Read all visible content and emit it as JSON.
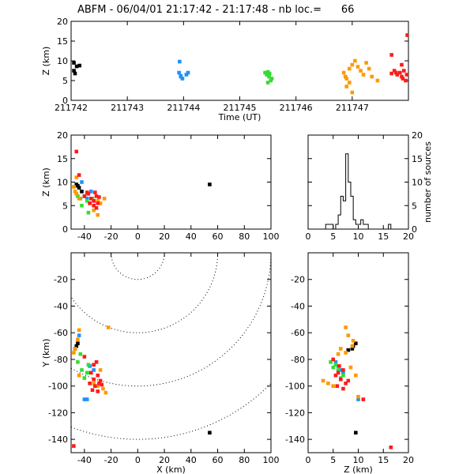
{
  "title": "ABFM - 06/04/01 21:17:42 - 21:17:48 - nb loc.=      66",
  "colors": {
    "black": "#000000",
    "blue": "#1e90ff",
    "green": "#33dd33",
    "orange": "#ff9900",
    "red": "#ff1a1a"
  },
  "chart_data": [
    {
      "id": "time-height",
      "type": "scatter",
      "xlabel": "Time (UT)",
      "ylabel": "Z (km)",
      "xlim": [
        211742,
        211748
      ],
      "ylim": [
        0,
        20
      ],
      "xticks": [
        "211742",
        "211743",
        "211744",
        "211745",
        "211746",
        "211747"
      ],
      "yticks": [
        "0",
        "5",
        "10",
        "15",
        "20"
      ],
      "series": [
        {
          "color": "black",
          "points": [
            [
              211742.05,
              9.5
            ],
            [
              211742.1,
              8.6
            ],
            [
              211742.15,
              8.8
            ],
            [
              211742.05,
              7.5
            ],
            [
              211742.07,
              6.8
            ]
          ]
        },
        {
          "color": "blue",
          "points": [
            [
              211743.93,
              9.8
            ],
            [
              211743.92,
              7.0
            ],
            [
              211743.95,
              6.2
            ],
            [
              211743.98,
              5.5
            ],
            [
              211744.05,
              6.5
            ],
            [
              211744.08,
              7.0
            ],
            [
              211743.95,
              6.0
            ]
          ]
        },
        {
          "color": "green",
          "points": [
            [
              211745.45,
              7.0
            ],
            [
              211745.48,
              6.5
            ],
            [
              211745.52,
              6.0
            ],
            [
              211745.55,
              5.0
            ],
            [
              211745.5,
              7.2
            ],
            [
              211745.53,
              6.8
            ],
            [
              211745.57,
              5.5
            ],
            [
              211745.5,
              4.5
            ]
          ]
        },
        {
          "color": "orange",
          "points": [
            [
              211746.85,
              7.0
            ],
            [
              211746.88,
              6.0
            ],
            [
              211746.9,
              5.5
            ],
            [
              211746.95,
              8.0
            ],
            [
              211747.0,
              9.0
            ],
            [
              211747.05,
              10.0
            ],
            [
              211747.1,
              8.5
            ],
            [
              211747.15,
              7.5
            ],
            [
              211747.2,
              6.5
            ],
            [
              211747.25,
              9.5
            ],
            [
              211747.3,
              8.0
            ],
            [
              211747.35,
              6.0
            ],
            [
              211746.95,
              4.5
            ],
            [
              211746.9,
              3.5
            ],
            [
              211747.0,
              2.0
            ],
            [
              211747.45,
              5.0
            ]
          ]
        },
        {
          "color": "red",
          "points": [
            [
              211747.7,
              11.5
            ],
            [
              211747.75,
              7.5
            ],
            [
              211747.78,
              7.0
            ],
            [
              211747.8,
              6.5
            ],
            [
              211747.85,
              7.0
            ],
            [
              211747.88,
              6.0
            ],
            [
              211747.9,
              5.5
            ],
            [
              211747.92,
              7.5
            ],
            [
              211747.95,
              5.0
            ],
            [
              211747.97,
              6.5
            ],
            [
              211747.98,
              16.5
            ],
            [
              211747.88,
              9.0
            ],
            [
              211747.7,
              6.8
            ]
          ]
        }
      ]
    },
    {
      "id": "xz-projection",
      "type": "scatter",
      "xlabel": "",
      "ylabel": "Z (km)",
      "xlim": [
        -50,
        100
      ],
      "ylim": [
        0,
        20
      ],
      "xticks": [
        "-40",
        "-20",
        "0",
        "20",
        "40",
        "60",
        "80",
        "100"
      ],
      "yticks": [
        "0",
        "5",
        "10",
        "15",
        "20"
      ],
      "series": [
        {
          "color": "black",
          "points": [
            [
              -46,
              9.5
            ],
            [
              -44,
              8.8
            ],
            [
              -45,
              9.2
            ],
            [
              -42,
              8.0
            ],
            [
              54,
              9.5
            ]
          ]
        },
        {
          "color": "blue",
          "points": [
            [
              -42,
              10.0
            ],
            [
              -40,
              7.0
            ],
            [
              -38,
              6.5
            ],
            [
              -35,
              8.0
            ],
            [
              -33,
              6.0
            ]
          ]
        },
        {
          "color": "green",
          "points": [
            [
              -45,
              7.0
            ],
            [
              -43,
              6.5
            ],
            [
              -40,
              7.0
            ],
            [
              -38,
              6.0
            ],
            [
              -36,
              5.5
            ],
            [
              -34,
              6.5
            ],
            [
              -42,
              5.0
            ],
            [
              -37,
              3.5
            ]
          ]
        },
        {
          "color": "orange",
          "points": [
            [
              -47,
              8.0
            ],
            [
              -46,
              7.5
            ],
            [
              -48,
              9.0
            ],
            [
              -44,
              6.5
            ],
            [
              -30,
              6.0
            ],
            [
              -28,
              5.5
            ],
            [
              -25,
              6.5
            ],
            [
              -33,
              4.0
            ],
            [
              -30,
              3.0
            ],
            [
              -46,
              11.0
            ]
          ]
        },
        {
          "color": "red",
          "points": [
            [
              -46,
              16.5
            ],
            [
              -44,
              11.5
            ],
            [
              -40,
              7.0
            ],
            [
              -37,
              7.5
            ],
            [
              -35,
              6.5
            ],
            [
              -33,
              6.0
            ],
            [
              -31,
              7.0
            ],
            [
              -36,
              5.5
            ],
            [
              -33,
              5.0
            ],
            [
              -30,
              5.5
            ],
            [
              -38,
              7.8
            ],
            [
              -32,
              7.8
            ],
            [
              -29,
              6.8
            ],
            [
              -31,
              4.5
            ]
          ]
        }
      ]
    },
    {
      "id": "histogram",
      "type": "bar",
      "xlabel": "",
      "ylabel": "number of sources",
      "xlim": [
        0,
        20
      ],
      "ylim": [
        0,
        20
      ],
      "xticks": [
        "0",
        "5",
        "10",
        "15",
        "20"
      ],
      "yticks": [
        "0",
        "5",
        "10",
        "15",
        "20"
      ],
      "bin_width": 0.5,
      "bin_start": 0,
      "values": [
        0,
        0,
        0,
        0,
        0,
        0,
        0,
        1,
        1,
        1,
        0,
        1,
        3,
        7,
        6,
        16,
        10,
        7,
        2,
        1,
        1,
        2,
        1,
        1,
        0,
        0,
        0,
        0,
        0,
        0,
        0,
        0,
        1,
        0,
        0,
        0,
        0,
        0,
        0,
        0
      ]
    },
    {
      "id": "plan-view",
      "type": "scatter",
      "xlabel": "X (km)",
      "ylabel": "Y (km)",
      "xlim": [
        -50,
        100
      ],
      "ylim": [
        -150,
        0
      ],
      "xticks": [
        "-40",
        "-20",
        "0",
        "20",
        "40",
        "60",
        "80",
        "100"
      ],
      "yticks": [
        "-140",
        "-120",
        "-100",
        "-80",
        "-60",
        "-40",
        "-20"
      ],
      "range_rings_km": [
        20,
        60,
        100,
        140
      ],
      "series": [
        {
          "color": "black",
          "points": [
            [
              -47,
              -72
            ],
            [
              -46,
              -70
            ],
            [
              -45,
              -68
            ],
            [
              54,
              -135
            ]
          ]
        },
        {
          "color": "blue",
          "points": [
            [
              -44,
              -62
            ],
            [
              -36,
              -85
            ],
            [
              -33,
              -88
            ],
            [
              -40,
              -110
            ],
            [
              -38,
              -110
            ]
          ]
        },
        {
          "color": "green",
          "points": [
            [
              -45,
              -82
            ],
            [
              -42,
              -88
            ],
            [
              -38,
              -90
            ],
            [
              -40,
              -94
            ],
            [
              -36,
              -90
            ],
            [
              -43,
              -76
            ],
            [
              -37,
              -84
            ]
          ]
        },
        {
          "color": "orange",
          "points": [
            [
              -44,
              -58
            ],
            [
              -45,
              -65
            ],
            [
              -48,
              -75
            ],
            [
              -47,
              -72
            ],
            [
              -22,
              -56
            ],
            [
              -28,
              -88
            ],
            [
              -26,
              -102
            ],
            [
              -24,
              -105
            ],
            [
              -33,
              -98
            ],
            [
              -30,
              -100
            ],
            [
              -44,
              -92
            ]
          ]
        },
        {
          "color": "red",
          "points": [
            [
              -48,
              -145
            ],
            [
              -35,
              -90
            ],
            [
              -33,
              -95
            ],
            [
              -30,
              -92
            ],
            [
              -28,
              -96
            ],
            [
              -32,
              -100
            ],
            [
              -29,
              -98
            ],
            [
              -34,
              -103
            ],
            [
              -30,
              -104
            ],
            [
              -27,
              -99
            ],
            [
              -40,
              -78
            ],
            [
              -31,
              -82
            ],
            [
              -33,
              -84
            ],
            [
              -36,
              -98
            ]
          ]
        }
      ]
    },
    {
      "id": "yz-projection",
      "type": "scatter",
      "xlabel": "Z (km)",
      "ylabel": "",
      "xlim": [
        0,
        20
      ],
      "ylim": [
        -150,
        0
      ],
      "xticks": [
        "0",
        "5",
        "10",
        "15",
        "20"
      ],
      "yticks": [
        "-140",
        "-120",
        "-100",
        "-80",
        "-60",
        "-40",
        "-20"
      ],
      "series": [
        {
          "color": "black",
          "points": [
            [
              9.5,
              -68
            ],
            [
              8.8,
              -72
            ],
            [
              8.0,
              -73
            ],
            [
              9.0,
              -70
            ],
            [
              9.5,
              -135
            ]
          ]
        },
        {
          "color": "blue",
          "points": [
            [
              6.0,
              -85
            ],
            [
              6.5,
              -88
            ],
            [
              7.0,
              -90
            ],
            [
              10.0,
              -110
            ],
            [
              5.5,
              -82
            ]
          ]
        },
        {
          "color": "green",
          "points": [
            [
              5.0,
              -86
            ],
            [
              6.0,
              -88
            ],
            [
              5.5,
              -84
            ],
            [
              7.0,
              -92
            ],
            [
              6.5,
              -94
            ],
            [
              4.5,
              -82
            ]
          ]
        },
        {
          "color": "orange",
          "points": [
            [
              7.5,
              -56
            ],
            [
              8.0,
              -62
            ],
            [
              9.0,
              -66
            ],
            [
              6.5,
              -72
            ],
            [
              3.0,
              -96
            ],
            [
              4.0,
              -98
            ],
            [
              5.0,
              -100
            ],
            [
              8.5,
              -86
            ],
            [
              9.5,
              -92
            ],
            [
              10.0,
              -108
            ],
            [
              7.5,
              -75
            ],
            [
              6.0,
              -76
            ],
            [
              8.8,
              -70
            ]
          ]
        },
        {
          "color": "red",
          "points": [
            [
              5.0,
              -80
            ],
            [
              6.0,
              -90
            ],
            [
              7.0,
              -88
            ],
            [
              5.5,
              -92
            ],
            [
              6.5,
              -95
            ],
            [
              7.5,
              -98
            ],
            [
              5.8,
              -100
            ],
            [
              7.0,
              -102
            ],
            [
              8.0,
              -96
            ],
            [
              11.0,
              -110
            ],
            [
              16.5,
              -146
            ],
            [
              6.2,
              -85
            ]
          ]
        }
      ]
    }
  ]
}
